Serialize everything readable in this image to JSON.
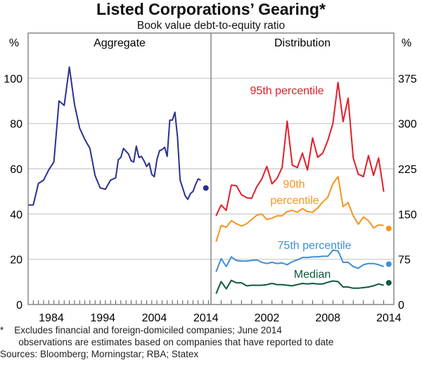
{
  "title": "Listed Corporations’ Gearing*",
  "subtitle": "Book value debt-to-equity ratio",
  "footnotes": {
    "line1": "*    Excludes financial and foreign-domiciled companies; June 2014",
    "line2": "       observations are estimates based on companies that have reported to date",
    "sources": "Sources: Bloomberg; Morningstar; RBA; Statex"
  },
  "chart_data": [
    {
      "type": "line",
      "panel_title": "Aggregate",
      "yunit": "%",
      "ylim": [
        0,
        120
      ],
      "yticks": [
        0,
        20,
        40,
        60,
        80,
        100
      ],
      "xlim": [
        1980,
        2015.5
      ],
      "xtick_labels": [
        "1984",
        "1994",
        "2004",
        "2014"
      ],
      "grid": true,
      "series": [
        {
          "color": "#2b3190",
          "x": [
            1980,
            1981,
            1982,
            1983,
            1984,
            1985,
            1986,
            1987,
            1988,
            1989,
            1990,
            1991,
            1992,
            1993,
            1994,
            1995,
            1996,
            1997,
            1997.5,
            1998,
            1998.5,
            1999.5,
            2000,
            2000.5,
            2001,
            2001.5,
            2002,
            2002.5,
            2003,
            2003.5,
            2004,
            2004.5,
            2005,
            2005.5,
            2006,
            2006.5,
            2007,
            2007.5,
            2008,
            2008.5,
            2009,
            2009.5,
            2010.5,
            2011,
            2011.5,
            2012,
            2012.5,
            2013,
            2013.5
          ],
          "values": [
            44,
            44,
            53.5,
            55,
            59.5,
            63,
            90,
            88,
            105,
            88.5,
            78,
            73,
            69,
            57,
            51.5,
            51,
            55,
            56,
            64,
            65,
            69,
            66.5,
            63.5,
            63,
            70,
            65,
            65.5,
            63.5,
            61,
            62.5,
            57.5,
            56.5,
            64,
            68,
            68.5,
            69.5,
            65.5,
            81.5,
            81.5,
            85,
            74,
            55,
            48,
            46.5,
            49,
            50,
            53,
            55.5,
            55
          ],
          "estimate": {
            "x": 2014.5,
            "value": 51.5
          }
        }
      ]
    },
    {
      "type": "line",
      "panel_title": "Distribution",
      "yunit": "%",
      "ylim": [
        0,
        450
      ],
      "yticks": [
        0,
        75,
        150,
        225,
        300,
        375
      ],
      "xlim": [
        1997,
        2015
      ],
      "xtick_labels": [
        "2002",
        "2008",
        "2014"
      ],
      "grid": true,
      "x": [
        1997.5,
        1998,
        1998.5,
        1999,
        1999.5,
        2000,
        2000.5,
        2001,
        2001.5,
        2002,
        2002.5,
        2003,
        2003.5,
        2004,
        2004.5,
        2005,
        2005.5,
        2006,
        2006.5,
        2007,
        2007.5,
        2008,
        2008.5,
        2009,
        2009.5,
        2010,
        2010.5,
        2011,
        2011.5,
        2012,
        2012.5,
        2013,
        2013.5,
        2014
      ],
      "series": [
        {
          "name": "95th percentile",
          "color": "#e0202a",
          "values": [
            147,
            165,
            156,
            198,
            197,
            182,
            177,
            176,
            195,
            208,
            229,
            200,
            209,
            227,
            304,
            231,
            227,
            251,
            223,
            276,
            244,
            251,
            272,
            300,
            368,
            303,
            342,
            243,
            216,
            212,
            247,
            214,
            243,
            187
          ]
        },
        {
          "name": "90th percentile",
          "color": "#f7941d",
          "values": [
            104,
            131,
            128,
            139,
            134,
            130,
            134,
            141,
            148,
            150,
            141,
            143,
            147,
            147,
            154,
            156,
            153,
            159,
            154,
            153,
            160,
            170,
            178,
            200,
            212,
            162,
            169,
            147,
            133,
            145,
            139,
            127,
            132,
            131
          ],
          "estimate": {
            "x": 2014.5,
            "value": 126
          }
        },
        {
          "name": "75th percentile",
          "color": "#3f8fd2",
          "values": [
            54,
            76,
            63,
            79,
            73,
            72,
            72,
            73,
            74,
            70,
            68,
            70,
            68,
            69,
            66,
            71,
            74,
            78,
            78,
            79,
            79,
            80,
            80,
            90,
            89,
            70,
            70,
            63,
            60,
            66,
            68,
            68,
            66,
            63
          ],
          "estimate": {
            "x": 2014.5,
            "value": 67
          }
        },
        {
          "name": "Median",
          "color": "#0f5a3a",
          "values": [
            18,
            38,
            26,
            40,
            36,
            36,
            31,
            32,
            32,
            32,
            33,
            35,
            33,
            33,
            32,
            31,
            33,
            35,
            34,
            35,
            34,
            34,
            37,
            39,
            38,
            29,
            29,
            27,
            27,
            28,
            29,
            31,
            34,
            32
          ],
          "estimate": {
            "x": 2014.5,
            "value": 36
          }
        }
      ],
      "series_labels": {
        "p95": "95th percentile",
        "p90_line1": "90th",
        "p90_line2": "percentile",
        "p75": "75th percentile",
        "median": "Median"
      }
    }
  ]
}
